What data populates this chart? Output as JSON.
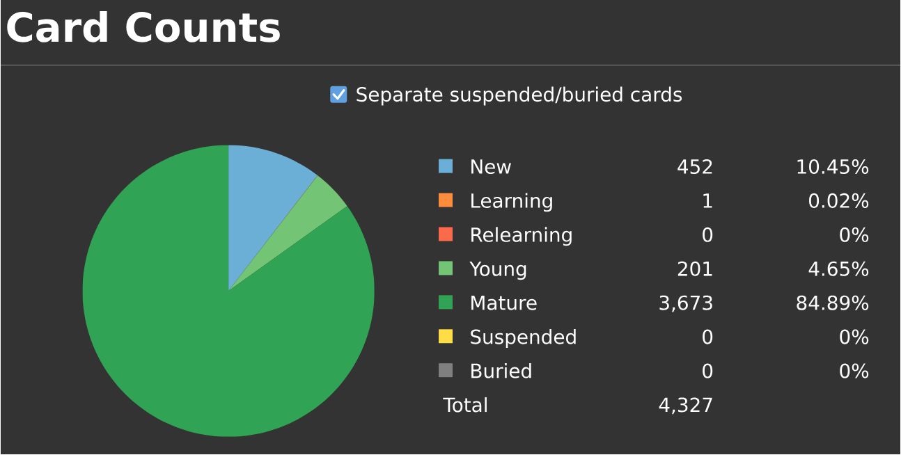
{
  "chart_data": {
    "type": "pie",
    "title": "Card Counts",
    "categories": [
      "New",
      "Learning",
      "Relearning",
      "Young",
      "Mature",
      "Suspended",
      "Buried"
    ],
    "values": [
      452,
      1,
      0,
      201,
      3673,
      0,
      0
    ],
    "value_labels": [
      "452",
      "1",
      "0",
      "201",
      "3,673",
      "0",
      "0"
    ],
    "colors": [
      "#6baed6",
      "#fd8d3c",
      "#fb6a4a",
      "#74c476",
      "#31a354",
      "#ffdd44",
      "#808080"
    ],
    "legend": "right",
    "annotations": [
      "Separate suspended/buried cards",
      "Total",
      "4,327",
      "10.45%",
      "0.02%",
      "0%",
      "4.65%",
      "84.89%",
      "0%",
      "0%"
    ]
  }
}
